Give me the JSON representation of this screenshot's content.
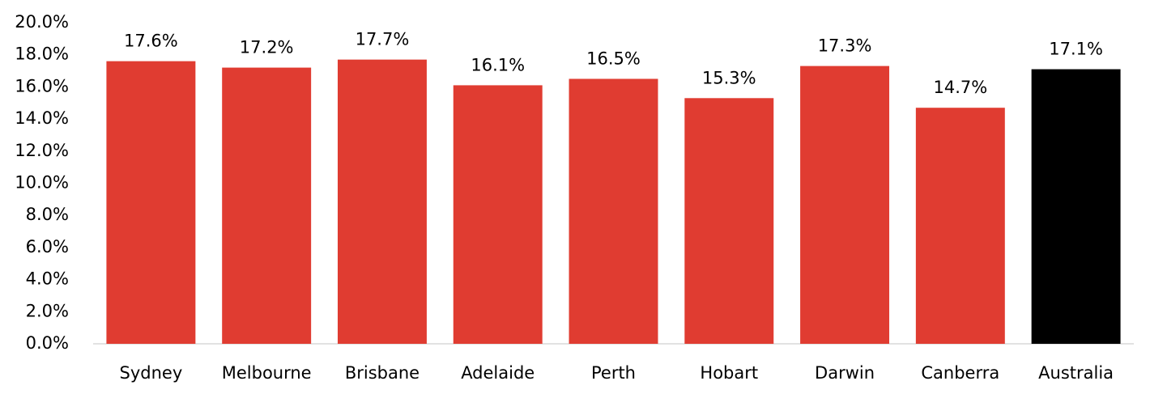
{
  "chart_data": {
    "type": "bar",
    "categories": [
      "Sydney",
      "Melbourne",
      "Brisbane",
      "Adelaide",
      "Perth",
      "Hobart",
      "Darwin",
      "Canberra",
      "Australia"
    ],
    "values": [
      17.6,
      17.2,
      17.7,
      16.1,
      16.5,
      15.3,
      17.3,
      14.7,
      17.1
    ],
    "value_labels": [
      "17.6%",
      "17.2%",
      "17.7%",
      "16.1%",
      "16.5%",
      "15.3%",
      "17.3%",
      "14.7%",
      "17.1%"
    ],
    "colors": [
      "#e03c31",
      "#e03c31",
      "#e03c31",
      "#e03c31",
      "#e03c31",
      "#e03c31",
      "#e03c31",
      "#e03c31",
      "#000000"
    ],
    "ylim": [
      0,
      20
    ],
    "yticks": [
      {
        "value": 0,
        "label": "0.0%"
      },
      {
        "value": 2,
        "label": "2.0%"
      },
      {
        "value": 4,
        "label": "4.0%"
      },
      {
        "value": 6,
        "label": "6.0%"
      },
      {
        "value": 8,
        "label": "8.0%"
      },
      {
        "value": 10,
        "label": "10.0%"
      },
      {
        "value": 12,
        "label": "12.0%"
      },
      {
        "value": 14,
        "label": "14.0%"
      },
      {
        "value": 16,
        "label": "16.0%"
      },
      {
        "value": 18,
        "label": "18.0%"
      },
      {
        "value": 20,
        "label": "20.0%"
      }
    ],
    "grid": false
  }
}
